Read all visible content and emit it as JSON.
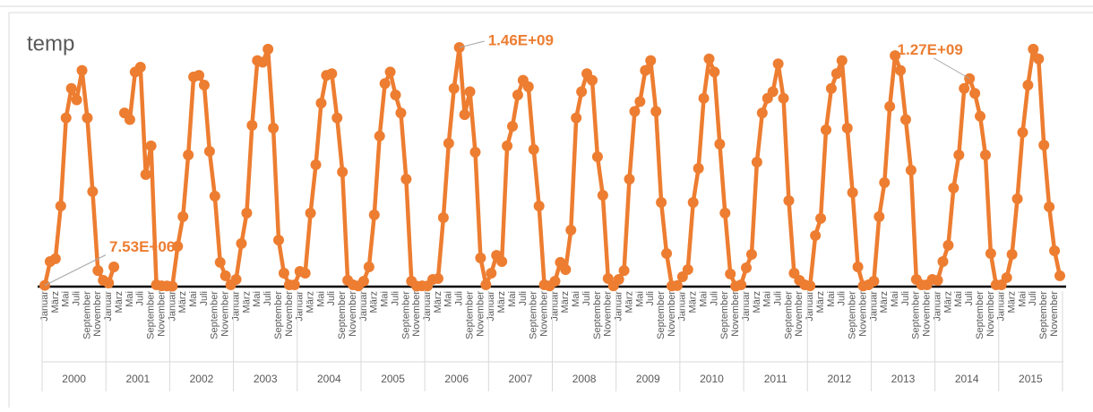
{
  "chart_data": {
    "type": "line",
    "title": "temp",
    "color": "#ED7D31",
    "categories": [
      "Januar",
      null,
      "März",
      null,
      "Mai",
      null,
      "Juli",
      null,
      "September",
      null,
      "November",
      null,
      "Januar",
      null,
      "März",
      null,
      "Mai",
      null,
      "Juli",
      null,
      "September",
      null,
      "November",
      null,
      "Januar",
      null,
      "März",
      null,
      "Mai",
      null,
      "Juli",
      null,
      "September",
      null,
      "November",
      null,
      "Januar",
      null,
      "März",
      null,
      "Mai",
      null,
      "Juli",
      null,
      "September",
      null,
      "November",
      null,
      "Januar",
      null,
      "März",
      null,
      "Mai",
      null,
      "Juli",
      null,
      "September",
      null,
      "November",
      null,
      "Januar",
      null,
      "März",
      null,
      "Mai",
      null,
      "Juli",
      null,
      "September",
      null,
      "November",
      null,
      "Januar",
      null,
      "März",
      null,
      "Mai",
      null,
      "Juli",
      null,
      "September",
      null,
      "November",
      null,
      "Januar",
      null,
      "März",
      null,
      "Mai",
      null,
      "Juli",
      null,
      "September",
      null,
      "November",
      null,
      "Januar",
      null,
      "März",
      null,
      "Mai",
      null,
      "Juli",
      null,
      "September",
      null,
      "November",
      null,
      "Januar",
      null,
      "März",
      null,
      "Mai",
      null,
      "Juli",
      null,
      "September",
      null,
      "November",
      null,
      "Januar",
      null,
      "März",
      null,
      "Mai",
      null,
      "Juli",
      null,
      "September",
      null,
      "November",
      null,
      "Januar",
      null,
      "März",
      null,
      "Mai",
      null,
      "Juli",
      null,
      "September",
      null,
      "November",
      null,
      "Januar",
      null,
      "März",
      null,
      "Mai",
      null,
      "Juli",
      null,
      "September",
      null,
      "November",
      null,
      "Januar",
      null,
      "März",
      null,
      "Mai",
      null,
      "Juli",
      null,
      "September",
      null,
      "November",
      null,
      "Januar",
      null,
      "März",
      null,
      "Mai",
      null,
      "Juli",
      null,
      "September",
      null,
      "November",
      null,
      "Januar",
      null,
      "März",
      null,
      "Mai",
      null,
      "Juli",
      null,
      "September",
      null,
      "November",
      null
    ],
    "category_groups": [
      "2000",
      "2001",
      "2002",
      "2003",
      "2004",
      "2005",
      "2006",
      "2007",
      "2008",
      "2009",
      "2010",
      "2011",
      "2012",
      "2013",
      "2014",
      "2015"
    ],
    "values": [
      7530000.0,
      153000000.0,
      170000000.0,
      492000000.0,
      1030000000.0,
      1210000000.0,
      1140000000.0,
      1320000000.0,
      1030000000.0,
      580000000.0,
      98000000.0,
      38000000.0,
      22000000.0,
      120000000.0,
      null,
      1060000000.0,
      1020000000.0,
      1310000000.0,
      1340000000.0,
      684000000.0,
      859000000.0,
      11000000.0,
      5000000.0,
      4000000.0,
      3000000.0,
      246000000.0,
      427000000.0,
      804000000.0,
      1280000000.0,
      1290000000.0,
      1230000000.0,
      826000000.0,
      552000000.0,
      148000000.0,
      66000000.0,
      11000000.0,
      44000000.0,
      263000000.0,
      449000000.0,
      985000000.0,
      1380000000.0,
      1370000000.0,
      1450000000.0,
      968000000.0,
      284000000.0,
      82000000.0,
      11000000.0,
      11000000.0,
      93000000.0,
      82000000.0,
      449000000.0,
      744000000.0,
      1120000000.0,
      1290000000.0,
      1300000000.0,
      1030000000.0,
      700000000.0,
      38000000.0,
      11000000.0,
      4000000.0,
      33000000.0,
      120000000.0,
      438000000.0,
      919000000.0,
      1240000000.0,
      1310000000.0,
      1170000000.0,
      1060000000.0,
      656000000.0,
      33000000.0,
      3000000.0,
      5000000.0,
      4000000.0,
      44000000.0,
      49000000.0,
      421000000.0,
      875000000.0,
      1210000000.0,
      1460000000.0,
      1050000000.0,
      1190000000.0,
      821000000.0,
      175000000.0,
      11000000.0,
      82000000.0,
      191000000.0,
      153000000.0,
      859000000.0,
      979000000.0,
      1170000000.0,
      1260000000.0,
      1220000000.0,
      837000000.0,
      492000000.0,
      11000000.0,
      4000000.0,
      33000000.0,
      148000000.0,
      104000000.0,
      345000000.0,
      1030000000.0,
      1190000000.0,
      1300000000.0,
      1260000000.0,
      793000000.0,
      558000000.0,
      49000000.0,
      5000000.0,
      44000000.0,
      98000000.0,
      656000000.0,
      1070000000.0,
      1130000000.0,
      1320000000.0,
      1380000000.0,
      1070000000.0,
      514000000.0,
      202000000.0,
      4000000.0,
      6000000.0,
      60000000.0,
      104000000.0,
      514000000.0,
      722000000.0,
      1150000000.0,
      1390000000.0,
      1310000000.0,
      870000000.0,
      449000000.0,
      77000000.0,
      3000000.0,
      11000000.0,
      115000000.0,
      197000000.0,
      760000000.0,
      1060000000.0,
      1150000000.0,
      1190000000.0,
      1360000000.0,
      1150000000.0,
      525000000.0,
      82000000.0,
      38000000.0,
      11000000.0,
      5000000.0,
      312000000.0,
      416000000.0,
      957000000.0,
      1210000000.0,
      1300000000.0,
      1380000000.0,
      968000000.0,
      574000000.0,
      120000000.0,
      4000000.0,
      11000000.0,
      33000000.0,
      427000000.0,
      635000000.0,
      1100000000.0,
      1410000000.0,
      1320000000.0,
      1020000000.0,
      711000000.0,
      44000000.0,
      11000000.0,
      11000000.0,
      44000000.0,
      38000000.0,
      153000000.0,
      252000000.0,
      602000000.0,
      804000000.0,
      1210000000.0,
      1270000000.0,
      1180000000.0,
      1040000000.0,
      804000000.0,
      202000000.0,
      11000000.0,
      11000000.0,
      55000000.0,
      197000000.0,
      536000000.0,
      941000000.0,
      1230000000.0,
      1450000000.0,
      1390000000.0,
      864000000.0,
      487000000.0,
      219000000.0,
      66000000.0
    ],
    "value_labels": [
      "7.53E+06",
      null,
      null,
      null,
      null,
      null,
      null,
      null,
      null,
      null,
      null,
      null,
      null,
      null,
      null,
      null,
      null,
      null,
      null,
      null,
      null,
      null,
      null,
      null,
      null,
      null,
      null,
      null,
      null,
      null,
      null,
      null,
      null,
      null,
      null,
      null,
      null,
      null,
      null,
      null,
      null,
      null,
      null,
      null,
      null,
      null,
      null,
      null,
      null,
      null,
      null,
      null,
      null,
      null,
      null,
      null,
      null,
      null,
      null,
      null,
      null,
      null,
      null,
      null,
      null,
      null,
      null,
      null,
      null,
      null,
      null,
      null,
      null,
      null,
      null,
      null,
      null,
      null,
      "1.46E+09",
      null,
      null,
      null,
      null,
      null,
      null,
      null,
      null,
      null,
      null,
      null,
      null,
      null,
      null,
      null,
      null,
      null,
      null,
      null,
      null,
      null,
      null,
      null,
      null,
      null,
      null,
      null,
      null,
      null,
      null,
      null,
      null,
      null,
      null,
      null,
      null,
      null,
      null,
      null,
      null,
      null,
      null,
      null,
      null,
      null,
      null,
      null,
      null,
      null,
      null,
      null,
      null,
      null,
      null,
      null,
      null,
      null,
      null,
      null,
      null,
      null,
      null,
      null,
      null,
      null,
      null,
      null,
      null,
      null,
      null,
      null,
      null,
      null,
      null,
      null,
      null,
      null,
      null,
      null,
      null,
      null,
      null,
      null,
      null,
      null,
      null,
      null,
      null,
      null,
      null,
      null,
      null,
      null,
      null,
      null,
      "1.27E+09",
      null,
      null,
      null,
      null,
      null,
      null,
      null,
      null,
      null,
      null,
      null,
      null,
      null,
      null,
      null,
      null,
      null
    ]
  }
}
